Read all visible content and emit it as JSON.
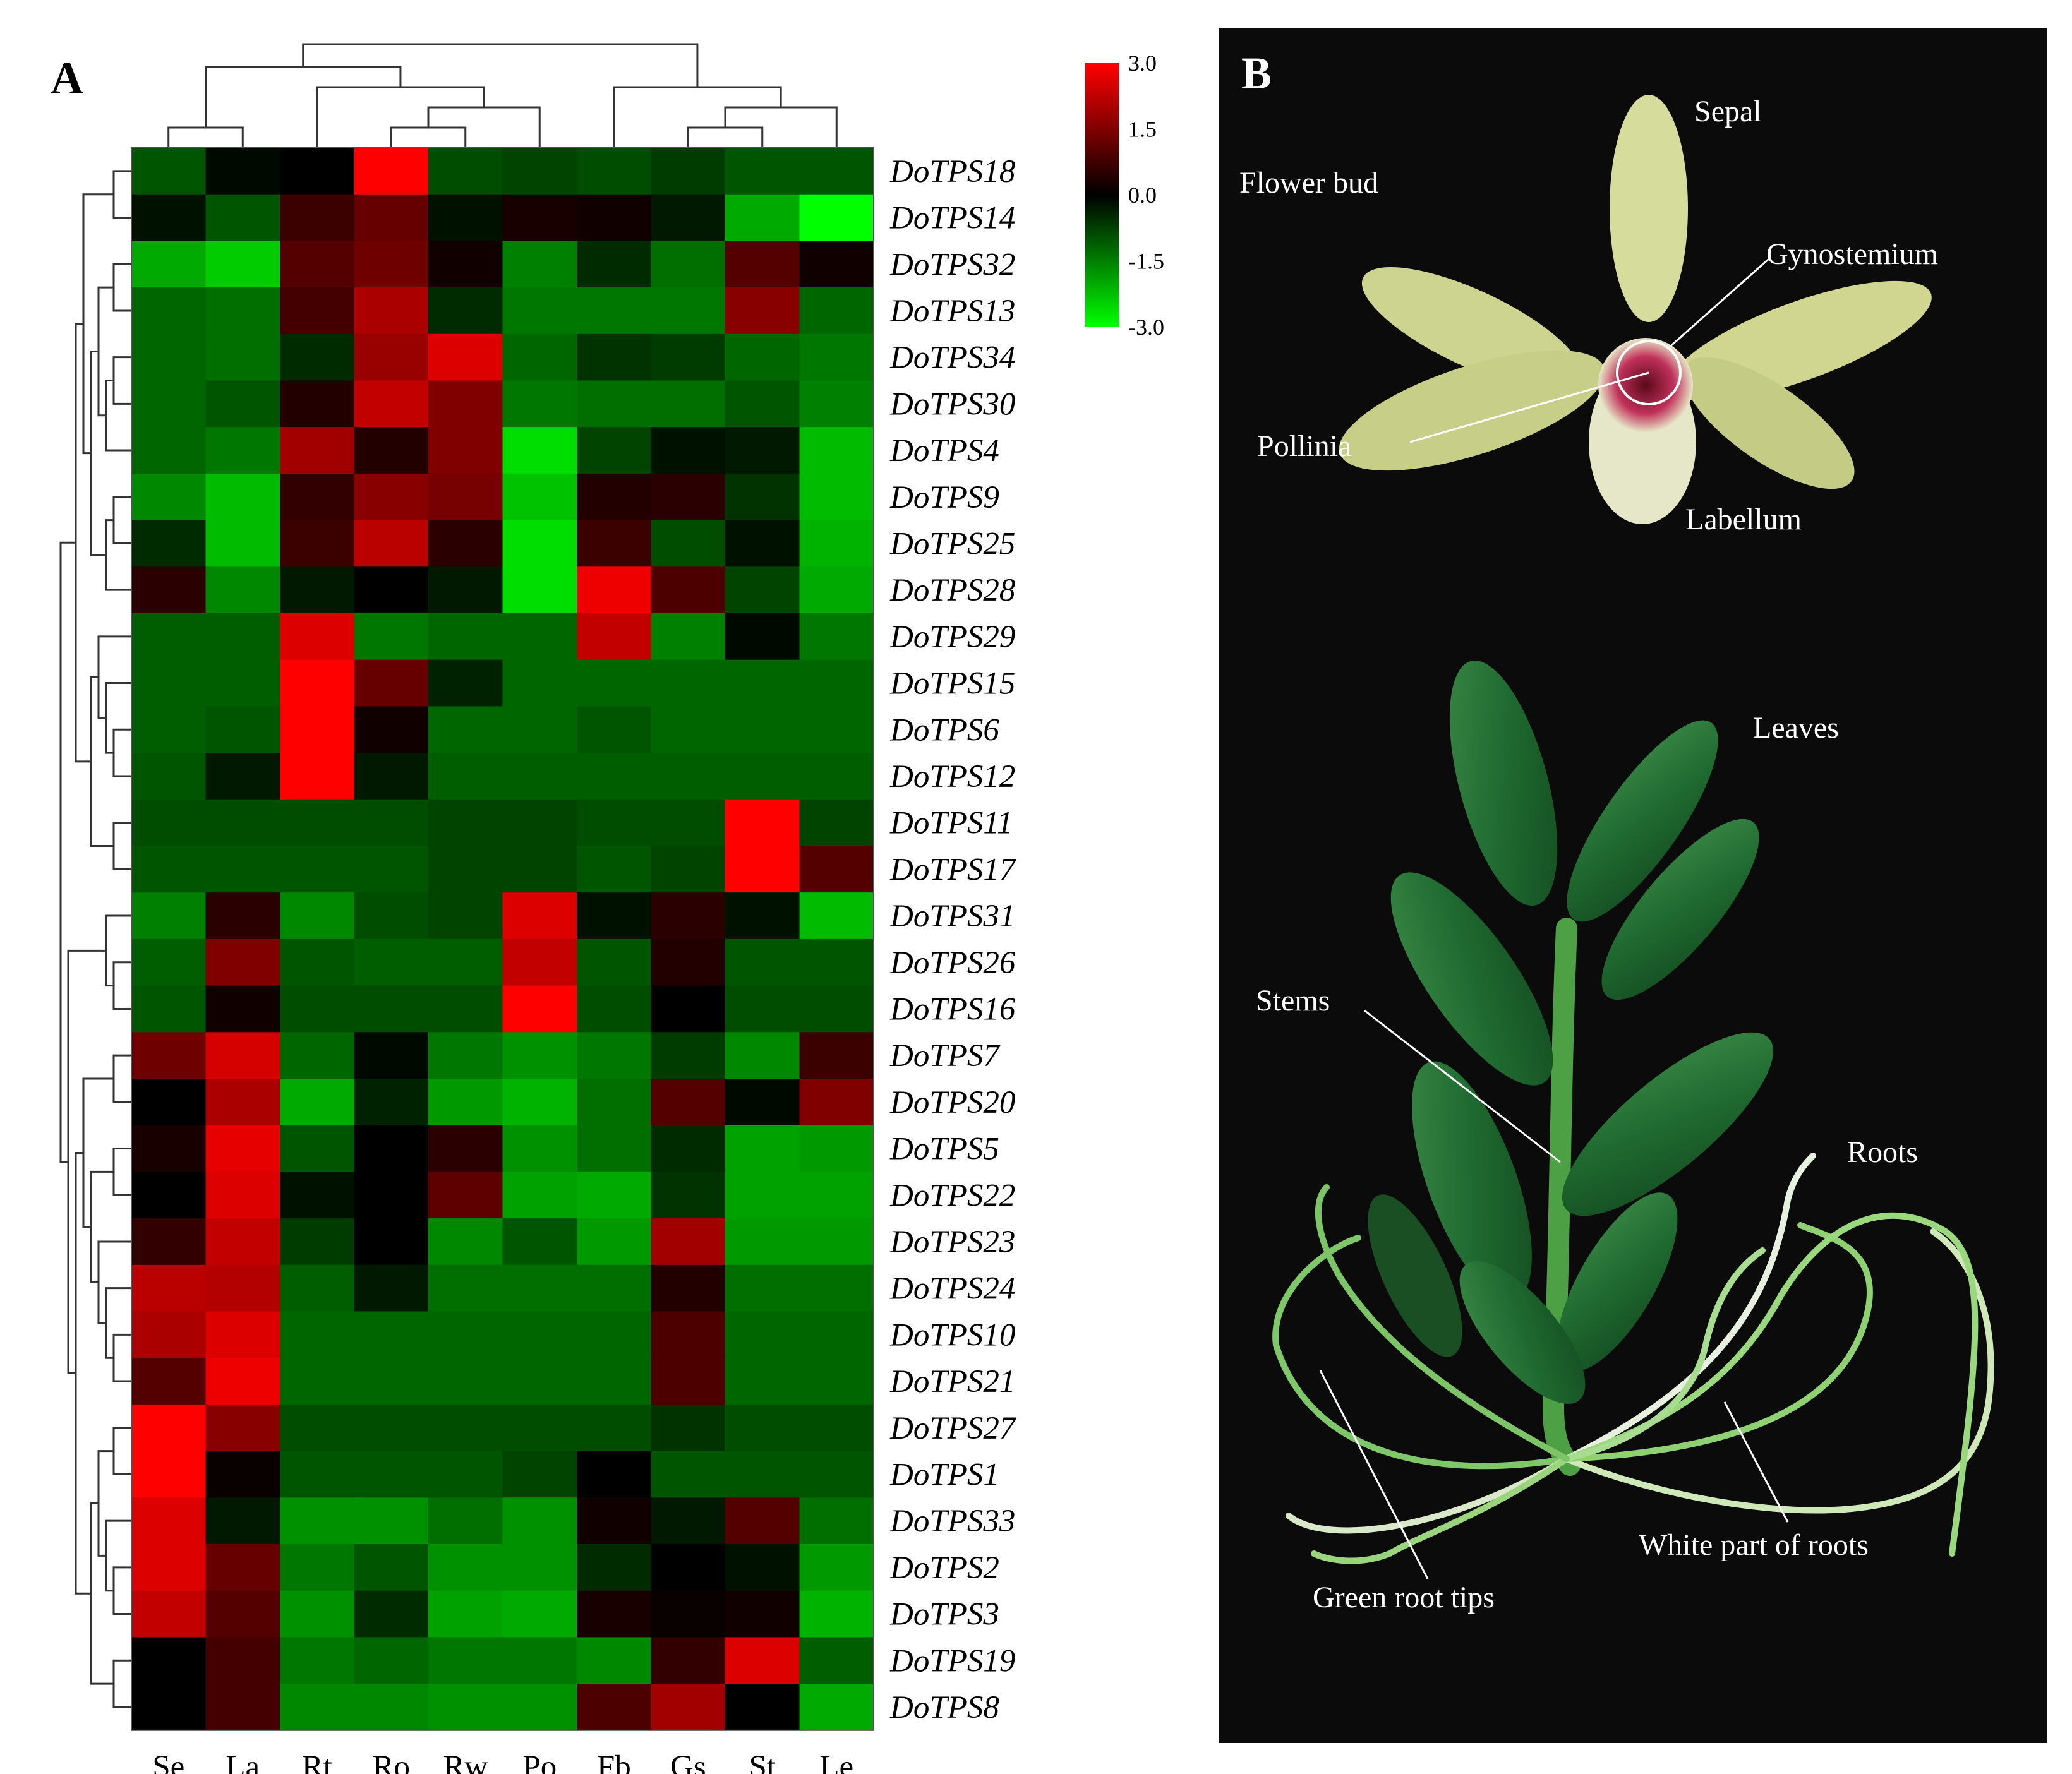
{
  "panel_a": {
    "letter": "A"
  },
  "panel_b": {
    "letter": "B",
    "labels": {
      "flower_bud": "Flower bud",
      "sepal": "Sepal",
      "gynostemium": "Gynostemium",
      "pollinia": "Pollinia",
      "labellum": "Labellum",
      "leaves": "Leaves",
      "stems": "Stems",
      "roots": "Roots",
      "white_part": "White part of roots",
      "green_tips": "Green root tips"
    }
  },
  "colors": {
    "high": "#ff0000",
    "mid": "#000000",
    "low": "#00ff00",
    "photo_bg": "#0b0b0b"
  },
  "chart_data": {
    "type": "heatmap",
    "title": "",
    "xlabel": "",
    "ylabel": "",
    "columns": [
      "Se",
      "La",
      "Rt",
      "Ro",
      "Rw",
      "Po",
      "Fb",
      "Gs",
      "St",
      "Le"
    ],
    "rows": [
      "DoTPS18",
      "DoTPS14",
      "DoTPS32",
      "DoTPS13",
      "DoTPS34",
      "DoTPS30",
      "DoTPS4",
      "DoTPS9",
      "DoTPS25",
      "DoTPS28",
      "DoTPS29",
      "DoTPS15",
      "DoTPS6",
      "DoTPS12",
      "DoTPS11",
      "DoTPS17",
      "DoTPS31",
      "DoTPS26",
      "DoTPS16",
      "DoTPS7",
      "DoTPS20",
      "DoTPS5",
      "DoTPS22",
      "DoTPS23",
      "DoTPS24",
      "DoTPS10",
      "DoTPS21",
      "DoTPS27",
      "DoTPS1",
      "DoTPS33",
      "DoTPS2",
      "DoTPS3",
      "DoTPS19",
      "DoTPS8"
    ],
    "values": [
      [
        -1.0,
        -0.1,
        0.0,
        3.0,
        -0.9,
        -0.8,
        -0.9,
        -0.7,
        -1.0,
        -1.0
      ],
      [
        -0.2,
        -1.0,
        0.7,
        1.2,
        -0.2,
        0.3,
        0.2,
        -0.3,
        -2.0,
        -3.0
      ],
      [
        -2.0,
        -2.4,
        1.0,
        1.3,
        0.2,
        -1.5,
        -0.5,
        -1.3,
        1.0,
        0.2
      ],
      [
        -1.2,
        -1.3,
        0.8,
        2.0,
        -0.5,
        -1.4,
        -1.4,
        -1.4,
        1.6,
        -1.2
      ],
      [
        -1.2,
        -1.3,
        -0.5,
        1.8,
        2.6,
        -1.2,
        -0.6,
        -0.7,
        -1.2,
        -1.4
      ],
      [
        -1.2,
        -1.0,
        0.4,
        2.3,
        1.5,
        -1.4,
        -1.3,
        -1.3,
        -1.0,
        -1.5
      ],
      [
        -1.2,
        -1.4,
        1.9,
        0.4,
        1.5,
        -2.6,
        -0.8,
        -0.2,
        -0.3,
        -2.2
      ],
      [
        -1.6,
        -2.2,
        0.6,
        1.6,
        1.4,
        -2.3,
        0.4,
        0.5,
        -0.6,
        -2.2
      ],
      [
        -0.5,
        -2.2,
        0.7,
        2.2,
        0.5,
        -2.6,
        0.7,
        -0.9,
        -0.2,
        -2.1
      ],
      [
        0.5,
        -1.6,
        -0.3,
        0.0,
        -0.3,
        -2.6,
        2.8,
        0.9,
        -0.8,
        -2.0
      ],
      [
        -1.1,
        -1.1,
        2.6,
        -1.4,
        -1.2,
        -1.2,
        2.3,
        -1.5,
        -0.1,
        -1.4
      ],
      [
        -1.1,
        -1.1,
        3.0,
        1.2,
        -0.4,
        -1.2,
        -1.2,
        -1.2,
        -1.2,
        -1.2
      ],
      [
        -1.1,
        -1.0,
        3.0,
        0.2,
        -1.2,
        -1.2,
        -1.0,
        -1.2,
        -1.2,
        -1.2
      ],
      [
        -1.0,
        -0.3,
        3.0,
        -0.3,
        -1.1,
        -1.1,
        -1.1,
        -1.1,
        -1.1,
        -1.1
      ],
      [
        -0.9,
        -0.9,
        -0.9,
        -0.9,
        -0.8,
        -0.8,
        -0.9,
        -0.9,
        3.0,
        -0.8
      ],
      [
        -1.0,
        -1.0,
        -1.0,
        -1.0,
        -0.8,
        -0.8,
        -1.0,
        -0.8,
        3.0,
        1.0
      ],
      [
        -1.5,
        0.5,
        -1.6,
        -0.9,
        -0.8,
        2.6,
        -0.2,
        0.5,
        -0.2,
        -2.2
      ],
      [
        -1.1,
        1.5,
        -1.0,
        -1.1,
        -1.1,
        2.3,
        -1.0,
        0.4,
        -1.0,
        -1.0
      ],
      [
        -1.0,
        0.2,
        -0.9,
        -0.9,
        -0.9,
        3.0,
        -0.9,
        0.0,
        -0.9,
        -0.9
      ],
      [
        1.3,
        2.5,
        -1.2,
        -0.1,
        -1.4,
        -1.7,
        -1.4,
        -0.7,
        -1.6,
        0.7
      ],
      [
        0.0,
        2.0,
        -2.0,
        -0.4,
        -1.8,
        -2.1,
        -1.3,
        1.0,
        -0.1,
        1.5
      ],
      [
        0.3,
        2.7,
        -1.0,
        0.0,
        0.5,
        -1.7,
        -1.3,
        -0.5,
        -1.9,
        -1.8
      ],
      [
        0.0,
        2.6,
        -0.2,
        0.0,
        1.1,
        -1.9,
        -2.0,
        -0.6,
        -1.9,
        -1.9
      ],
      [
        0.6,
        2.3,
        -0.7,
        0.0,
        -1.6,
        -1.0,
        -1.8,
        1.9,
        -1.8,
        -1.8
      ],
      [
        2.2,
        2.1,
        -1.1,
        -0.3,
        -1.3,
        -1.3,
        -1.3,
        0.4,
        -1.3,
        -1.3
      ],
      [
        2.0,
        2.6,
        -1.2,
        -1.2,
        -1.2,
        -1.2,
        -1.2,
        0.9,
        -1.2,
        -1.2
      ],
      [
        1.0,
        2.8,
        -1.2,
        -1.2,
        -1.2,
        -1.2,
        -1.2,
        0.9,
        -1.2,
        -1.2
      ],
      [
        3.0,
        1.6,
        -0.9,
        -0.9,
        -0.9,
        -0.9,
        -0.9,
        -0.6,
        -0.9,
        -0.9
      ],
      [
        3.0,
        0.1,
        -1.0,
        -1.0,
        -1.0,
        -0.8,
        0.0,
        -1.0,
        -1.0,
        -1.0
      ],
      [
        2.6,
        -0.3,
        -1.7,
        -1.7,
        -1.3,
        -1.7,
        0.2,
        -0.3,
        1.0,
        -1.3
      ],
      [
        2.6,
        1.2,
        -1.4,
        -1.0,
        -1.7,
        -1.7,
        -0.5,
        0.0,
        -0.2,
        -1.8
      ],
      [
        2.3,
        1.0,
        -1.7,
        -0.5,
        -1.9,
        -2.0,
        0.3,
        0.1,
        0.2,
        -2.1
      ],
      [
        0.0,
        0.8,
        -1.4,
        -1.2,
        -1.4,
        -1.4,
        -1.6,
        0.6,
        2.6,
        -1.1
      ],
      [
        0.0,
        0.8,
        -1.6,
        -1.6,
        -1.7,
        -1.7,
        0.9,
        1.9,
        0.0,
        -2.0
      ]
    ],
    "color_scale": {
      "min": -3.0,
      "max": 3.0,
      "ticks": [
        "3.0",
        "1.5",
        "0.0",
        "-1.5",
        "-3.0"
      ],
      "colors": [
        "#00ff00",
        "#000000",
        "#ff0000"
      ]
    },
    "row_dendrogram": true,
    "column_dendrogram": true,
    "legend_position": "top-right"
  }
}
